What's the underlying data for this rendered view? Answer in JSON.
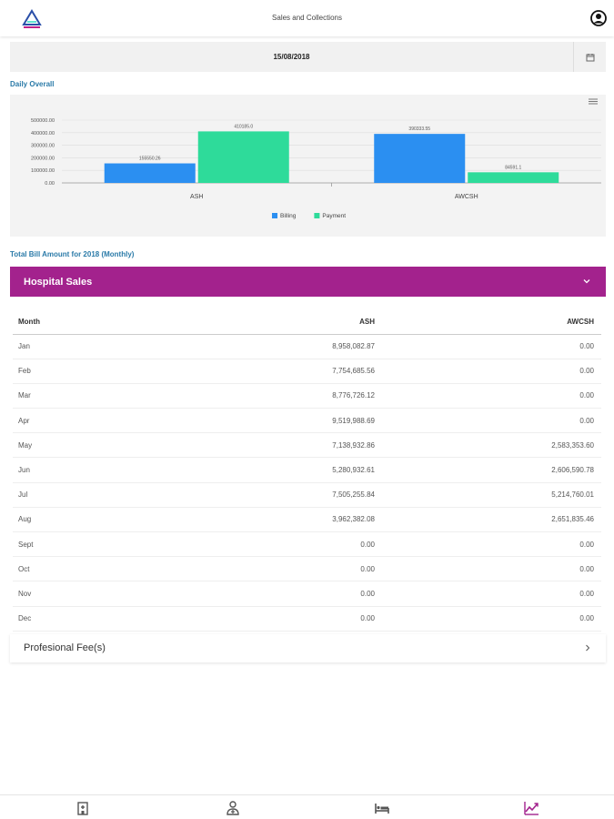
{
  "header": {
    "title": "Sales and Collections",
    "logo_icon": "triangle-logo-icon",
    "avatar_icon": "user-account-icon"
  },
  "date_picker": {
    "value": "15/08/2018",
    "icon": "calendar-icon"
  },
  "daily_overall": {
    "label": "Daily Overall",
    "chart_data": {
      "type": "bar",
      "categories": [
        "ASH",
        "AWCSH"
      ],
      "series": [
        {
          "name": "Billing",
          "values": [
            155550.26,
            390333.55
          ],
          "labels": [
            "155550.26",
            "390333.55"
          ],
          "color": "#2b8ff1"
        },
        {
          "name": "Payment",
          "values": [
            410185.0,
            84591.1
          ],
          "labels": [
            "410185.0",
            "84591.1"
          ],
          "color": "#2edb9a"
        }
      ],
      "ylim": [
        0,
        500000
      ],
      "yticks": [
        "500000.00",
        "400000.00",
        "300000.00",
        "200000.00",
        "100000.00",
        "0.00"
      ],
      "legend": "bottom-center",
      "grid": true,
      "menu_icon": "hamburger-menu-icon"
    }
  },
  "monthly": {
    "label": "Total Bill Amount for 2018 (Monthly)",
    "accordion_title": "Hospital Sales",
    "accordion_icon": "chevron-down-icon",
    "columns": [
      "Month",
      "ASH",
      "AWCSH"
    ],
    "rows": [
      [
        "Jan",
        "8,958,082.87",
        "0.00"
      ],
      [
        "Feb",
        "7,754,685.56",
        "0.00"
      ],
      [
        "Mar",
        "8,776,726.12",
        "0.00"
      ],
      [
        "Apr",
        "9,519,988.69",
        "0.00"
      ],
      [
        "May",
        "7,138,932.86",
        "2,583,353.60"
      ],
      [
        "Jun",
        "5,280,932.61",
        "2,606,590.78"
      ],
      [
        "Jul",
        "7,505,255.84",
        "5,214,760.01"
      ],
      [
        "Aug",
        "3,962,382.08",
        "2,651,835.46"
      ],
      [
        "Sept",
        "0.00",
        "0.00"
      ],
      [
        "Oct",
        "0.00",
        "0.00"
      ],
      [
        "Nov",
        "0.00",
        "0.00"
      ],
      [
        "Dec",
        "0.00",
        "0.00"
      ]
    ]
  },
  "professional_fees": {
    "label": "Profesional Fee(s)",
    "icon": "chevron-right-icon"
  },
  "bottom_nav": [
    {
      "name": "hospital-icon"
    },
    {
      "name": "doctor-icon"
    },
    {
      "name": "bed-icon"
    },
    {
      "name": "trending-chart-icon",
      "active": true
    }
  ],
  "colors": {
    "accent": "#a3228d",
    "label_blue": "#2a7aa8",
    "billing": "#2b8ff1",
    "payment": "#2edb9a"
  }
}
